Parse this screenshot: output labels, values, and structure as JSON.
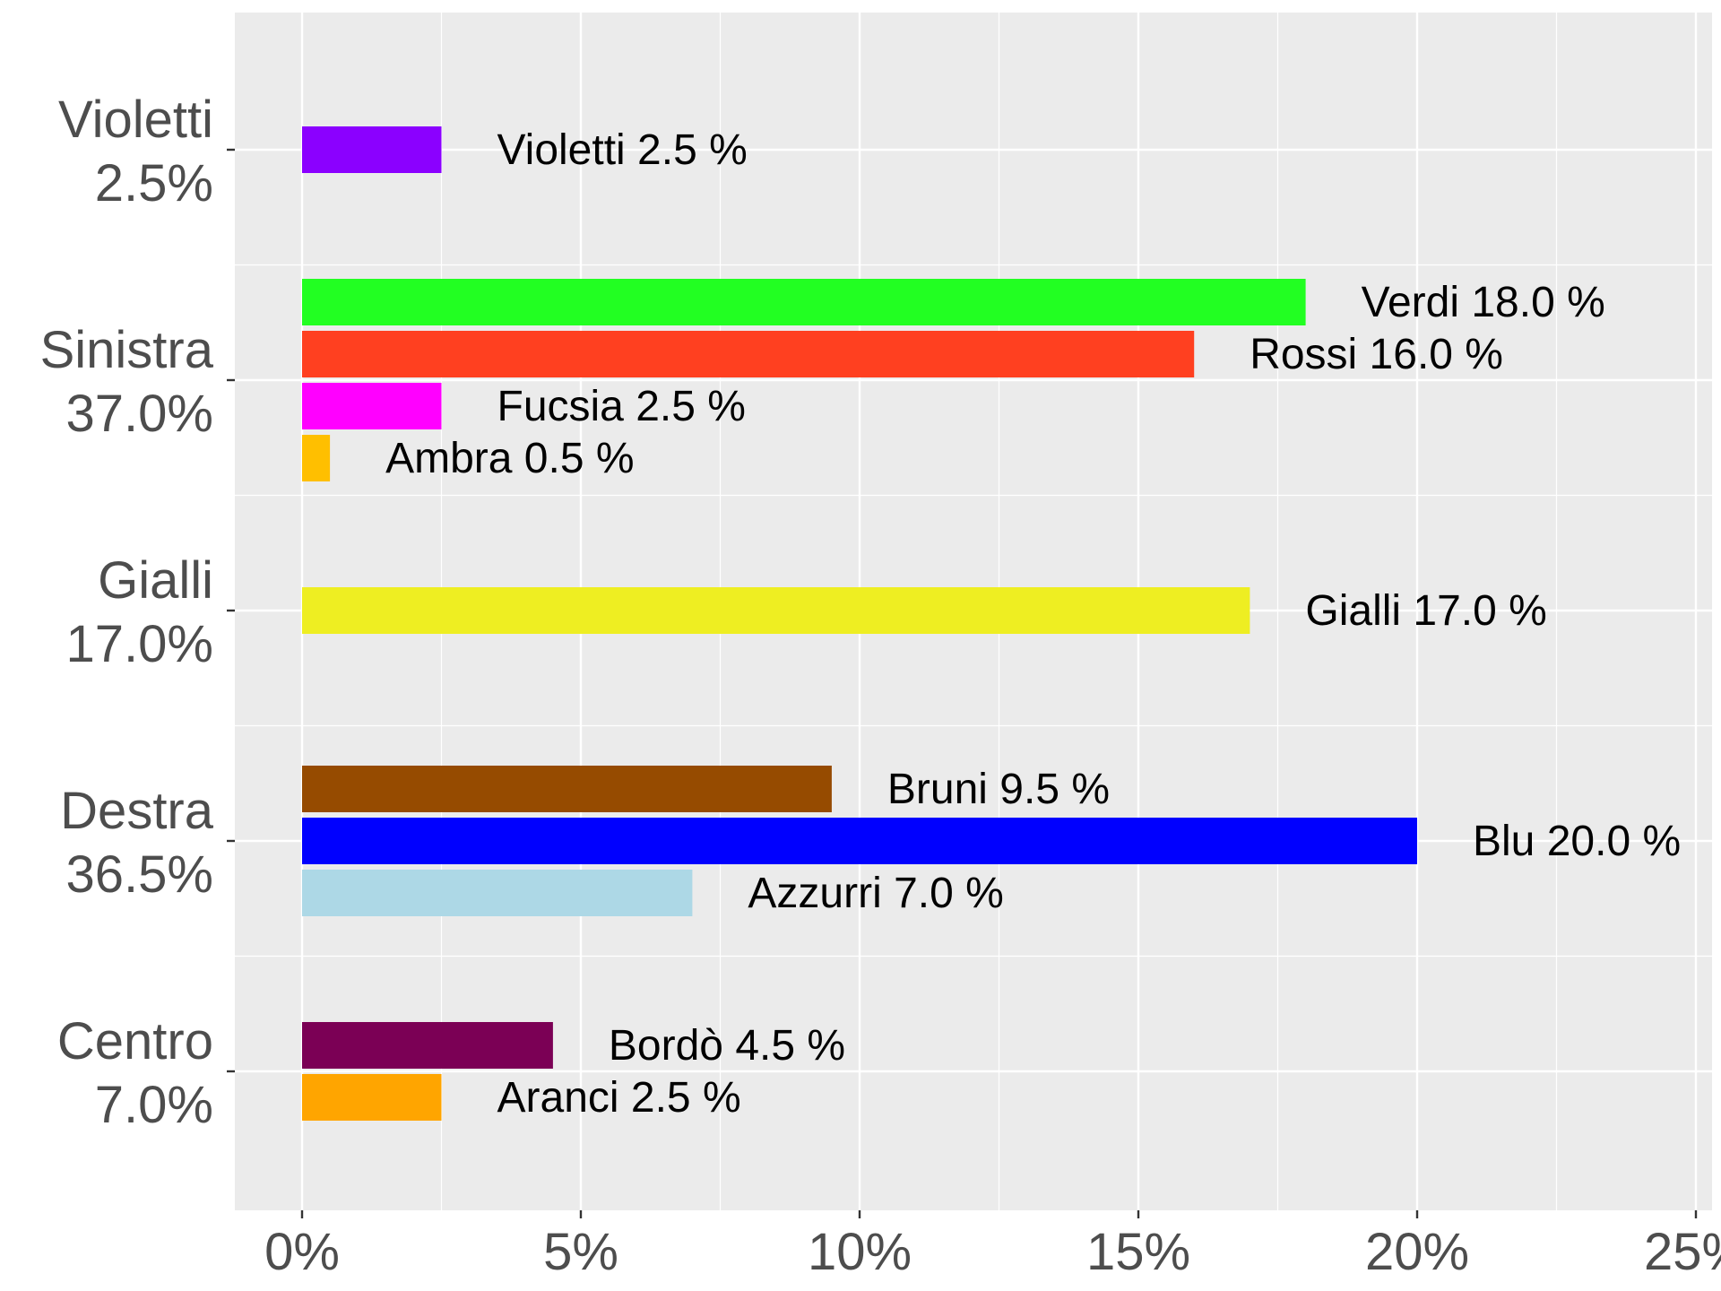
{
  "chart_data": {
    "type": "bar",
    "orientation": "horizontal",
    "grid": true,
    "background": "#ebebeb",
    "xlim": [
      -1.2,
      25.2
    ],
    "x_ticks": [
      {
        "value": 0,
        "label": "0%"
      },
      {
        "value": 5,
        "label": "5%"
      },
      {
        "value": 10,
        "label": "10%"
      },
      {
        "value": 15,
        "label": "15%"
      },
      {
        "value": 20,
        "label": "20%"
      },
      {
        "value": 25,
        "label": "25%"
      }
    ],
    "groups": [
      {
        "name": "Violetti",
        "total": "2.5%",
        "bars": [
          {
            "party": "Violetti",
            "value": 2.5,
            "label": "Violetti  2.5 %",
            "color": "#8b00ff"
          }
        ]
      },
      {
        "name": "Sinistra",
        "total": "37.0%",
        "bars": [
          {
            "party": "Verdi",
            "value": 18.0,
            "label": "Verdi 18.0 %",
            "color": "#22ff22"
          },
          {
            "party": "Rossi",
            "value": 16.0,
            "label": "Rossi 16.0 %",
            "color": "#ff4020"
          },
          {
            "party": "Fucsia",
            "value": 2.5,
            "label": "Fucsia  2.5 %",
            "color": "#ff00ff"
          },
          {
            "party": "Ambra",
            "value": 0.5,
            "label": "Ambra  0.5 %",
            "color": "#ffbf00"
          }
        ]
      },
      {
        "name": "Gialli",
        "total": "17.0%",
        "bars": [
          {
            "party": "Gialli",
            "value": 17.0,
            "label": "Gialli 17.0 %",
            "color": "#eeee22"
          }
        ]
      },
      {
        "name": "Destra",
        "total": "36.5%",
        "bars": [
          {
            "party": "Bruni",
            "value": 9.5,
            "label": "Bruni  9.5 %",
            "color": "#964b00"
          },
          {
            "party": "Blu",
            "value": 20.0,
            "label": "Blu 20.0 %",
            "color": "#0000ff"
          },
          {
            "party": "Azzurri",
            "value": 7.0,
            "label": "Azzurri  7.0 %",
            "color": "#add8e6"
          }
        ]
      },
      {
        "name": "Centro",
        "total": "7.0%",
        "bars": [
          {
            "party": "Bordò",
            "value": 4.5,
            "label": "Bordò  4.5 %",
            "color": "#7b0055"
          },
          {
            "party": "Aranci",
            "value": 2.5,
            "label": "Aranci  2.5 %",
            "color": "#ffa500"
          }
        ]
      }
    ]
  }
}
